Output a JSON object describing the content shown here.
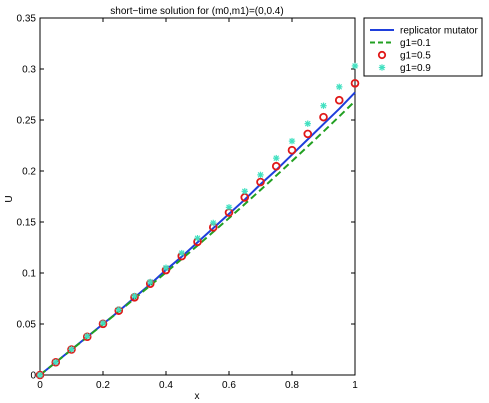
{
  "chart_data": {
    "type": "line",
    "title": "short−time solution for (m0,m1)=(0,0.4)",
    "xlabel": "x",
    "ylabel": "U",
    "xlim": [
      0,
      1
    ],
    "ylim": [
      0,
      0.35
    ],
    "xticks": [
      "0",
      "0.2",
      "0.4",
      "0.6",
      "0.8",
      "1"
    ],
    "yticks": [
      "0",
      "0.05",
      "0.1",
      "0.15",
      "0.2",
      "0.25",
      "0.3",
      "0.35"
    ],
    "grid": false,
    "legend_position": "outside top-right",
    "series": [
      {
        "name": "replicator mutator",
        "style": "solid-line",
        "color": "#1f3fdc",
        "x": [
          0,
          0.05,
          0.1,
          0.15,
          0.2,
          0.25,
          0.3,
          0.35,
          0.4,
          0.45,
          0.5,
          0.55,
          0.6,
          0.65,
          0.7,
          0.75,
          0.8,
          0.85,
          0.9,
          0.95,
          1
        ],
        "values": [
          0,
          0.0125,
          0.025,
          0.0375,
          0.05,
          0.0625,
          0.076,
          0.089,
          0.103,
          0.116,
          0.13,
          0.144,
          0.158,
          0.172,
          0.187,
          0.201,
          0.216,
          0.231,
          0.246,
          0.261,
          0.277
        ]
      },
      {
        "name": "g1=0.1",
        "style": "dashed-line",
        "color": "#22a022",
        "x": [
          0,
          0.05,
          0.1,
          0.15,
          0.2,
          0.25,
          0.3,
          0.35,
          0.4,
          0.45,
          0.5,
          0.55,
          0.6,
          0.65,
          0.7,
          0.75,
          0.8,
          0.85,
          0.9,
          0.95,
          1
        ],
        "values": [
          0,
          0.0124,
          0.0248,
          0.0372,
          0.0497,
          0.0622,
          0.0749,
          0.0877,
          0.1006,
          0.1137,
          0.1269,
          0.1403,
          0.1538,
          0.1675,
          0.1814,
          0.1955,
          0.2097,
          0.2241,
          0.2387,
          0.2535,
          0.2685
        ]
      },
      {
        "name": "g1=0.5",
        "style": "circle-markers",
        "color": "#e01818",
        "x": [
          0,
          0.05,
          0.1,
          0.15,
          0.2,
          0.25,
          0.3,
          0.35,
          0.4,
          0.45,
          0.5,
          0.55,
          0.6,
          0.65,
          0.7,
          0.75,
          0.8,
          0.85,
          0.9,
          0.95,
          1
        ],
        "values": [
          0,
          0.0125,
          0.025,
          0.0375,
          0.0502,
          0.0631,
          0.0762,
          0.0895,
          0.1029,
          0.1166,
          0.1306,
          0.1448,
          0.1593,
          0.1741,
          0.1892,
          0.2047,
          0.2204,
          0.2364,
          0.2528,
          0.2694,
          0.286
        ]
      },
      {
        "name": "g1=0.9",
        "style": "star-markers",
        "color": "#40e0c0",
        "x": [
          0,
          0.05,
          0.1,
          0.15,
          0.2,
          0.25,
          0.3,
          0.35,
          0.4,
          0.45,
          0.5,
          0.55,
          0.6,
          0.65,
          0.7,
          0.75,
          0.8,
          0.85,
          0.9,
          0.95,
          1
        ],
        "values": [
          0,
          0.0126,
          0.0252,
          0.038,
          0.0509,
          0.0641,
          0.0775,
          0.0912,
          0.1052,
          0.1195,
          0.1341,
          0.1491,
          0.1644,
          0.1801,
          0.1962,
          0.2126,
          0.2293,
          0.2464,
          0.264,
          0.2825,
          0.303
        ]
      }
    ]
  }
}
